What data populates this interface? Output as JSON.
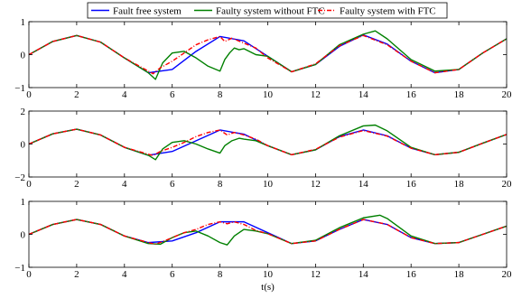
{
  "chart_data": {
    "type": "line",
    "legend": {
      "placement": "top-center",
      "entries": [
        {
          "label": "Fault free system",
          "color": "#0000ff",
          "style": "solid"
        },
        {
          "label": "Faulty system without FTC",
          "color": "#008000",
          "style": "solid"
        },
        {
          "label": "Faulty system with FTC",
          "color": "#ff0000",
          "style": "dash-dot"
        }
      ]
    },
    "xlabel": "t(s)",
    "xlim": [
      0,
      20
    ],
    "xticks": [
      0,
      2,
      4,
      6,
      8,
      10,
      12,
      14,
      16,
      18,
      20
    ],
    "xtick_labels": [
      "0",
      "2",
      "4",
      "6",
      "8",
      "10",
      "12",
      "14",
      "16",
      "18",
      "20"
    ],
    "grid": false,
    "panels": [
      {
        "ylim": [
          -1,
          1
        ],
        "yticks": [
          -1,
          0,
          1
        ],
        "ytick_labels": [
          "−1",
          "0",
          "1"
        ],
        "series": [
          {
            "name": "Fault free system",
            "color": "#0000ff",
            "dash": "",
            "x": [
              0,
              1,
              2,
              3,
              4,
              5,
              6,
              7,
              8,
              9,
              10,
              11,
              12,
              13,
              14,
              15,
              16,
              17,
              18,
              19,
              20
            ],
            "y": [
              0,
              0.4,
              0.58,
              0.38,
              -0.1,
              -0.55,
              -0.45,
              0.1,
              0.55,
              0.42,
              -0.05,
              -0.52,
              -0.3,
              0.25,
              0.6,
              0.32,
              -0.2,
              -0.55,
              -0.45,
              0.05,
              0.48
            ]
          },
          {
            "name": "Faulty system without FTC",
            "color": "#008000",
            "dash": "",
            "x": [
              0,
              1,
              2,
              3,
              4,
              5,
              5.3,
              5.6,
              6,
              6.5,
              7,
              7.5,
              8,
              8.2,
              8.4,
              8.6,
              8.8,
              9,
              9.5,
              10,
              11,
              12,
              13,
              14,
              14.5,
              15,
              16,
              17,
              18,
              19,
              20
            ],
            "y": [
              0,
              0.4,
              0.58,
              0.38,
              -0.1,
              -0.55,
              -0.75,
              -0.25,
              0.05,
              0.1,
              -0.1,
              -0.35,
              -0.5,
              -0.15,
              0.05,
              0.2,
              0.15,
              0.18,
              0,
              -0.05,
              -0.52,
              -0.3,
              0.3,
              0.62,
              0.72,
              0.48,
              -0.15,
              -0.5,
              -0.45,
              0.05,
              0.48
            ]
          },
          {
            "name": "Faulty system with FTC",
            "color": "#ff0000",
            "dash": "5,2,1,2",
            "x": [
              0,
              1,
              2,
              3,
              4,
              5,
              5.2,
              5.5,
              6,
              6.5,
              7,
              7.5,
              8,
              8.2,
              8.5,
              9,
              9.5,
              10,
              11,
              12,
              13,
              14,
              15,
              16,
              17,
              18,
              19,
              20
            ],
            "y": [
              0,
              0.4,
              0.58,
              0.38,
              -0.1,
              -0.5,
              -0.58,
              -0.4,
              -0.2,
              0.05,
              0.3,
              0.45,
              0.55,
              0.4,
              0.5,
              0.35,
              0.2,
              -0.1,
              -0.52,
              -0.28,
              0.27,
              0.58,
              0.3,
              -0.2,
              -0.55,
              -0.45,
              0.05,
              0.48
            ]
          }
        ]
      },
      {
        "ylim": [
          -2,
          2
        ],
        "yticks": [
          -2,
          0,
          2
        ],
        "ytick_labels": [
          "−2",
          "0",
          "2"
        ],
        "series": [
          {
            "name": "Fault free system",
            "color": "#0000ff",
            "dash": "",
            "x": [
              0,
              1,
              2,
              3,
              4,
              5,
              6,
              7,
              8,
              9,
              10,
              11,
              12,
              13,
              14,
              15,
              16,
              17,
              18,
              19,
              20
            ],
            "y": [
              0,
              0.62,
              0.9,
              0.55,
              -0.2,
              -0.68,
              -0.45,
              0.2,
              0.85,
              0.6,
              -0.1,
              -0.65,
              -0.35,
              0.45,
              0.85,
              0.5,
              -0.25,
              -0.65,
              -0.5,
              0.05,
              0.58
            ]
          },
          {
            "name": "Faulty system without FTC",
            "color": "#008000",
            "dash": "",
            "x": [
              0,
              1,
              2,
              3,
              4,
              5,
              5.3,
              5.6,
              6,
              6.5,
              7,
              7.5,
              8,
              8.2,
              8.5,
              8.8,
              9,
              9.5,
              10,
              11,
              12,
              13,
              14,
              14.5,
              15,
              16,
              17,
              18,
              19,
              20
            ],
            "y": [
              0,
              0.62,
              0.9,
              0.55,
              -0.2,
              -0.68,
              -0.95,
              -0.3,
              0.1,
              0.2,
              0,
              -0.3,
              -0.55,
              -0.1,
              0.2,
              0.35,
              0.3,
              0.2,
              -0.1,
              -0.65,
              -0.35,
              0.5,
              1.1,
              1.15,
              0.8,
              -0.2,
              -0.65,
              -0.5,
              0.05,
              0.58
            ]
          },
          {
            "name": "Faulty system with FTC",
            "color": "#ff0000",
            "dash": "5,2,1,2",
            "x": [
              0,
              1,
              2,
              3,
              4,
              5,
              5.2,
              5.5,
              6,
              6.5,
              7,
              7.5,
              8,
              8.3,
              8.6,
              9,
              9.5,
              10,
              11,
              12,
              13,
              14,
              15,
              16,
              17,
              18,
              19,
              20
            ],
            "y": [
              0,
              0.62,
              0.9,
              0.55,
              -0.2,
              -0.62,
              -0.7,
              -0.45,
              -0.2,
              0.1,
              0.45,
              0.7,
              0.85,
              0.55,
              0.7,
              0.55,
              0.3,
              -0.1,
              -0.65,
              -0.32,
              0.42,
              0.82,
              0.48,
              -0.25,
              -0.65,
              -0.5,
              0.05,
              0.58
            ]
          }
        ]
      },
      {
        "ylim": [
          -1,
          1
        ],
        "yticks": [
          -1,
          0,
          1
        ],
        "ytick_labels": [
          "−1",
          "0",
          "1"
        ],
        "series": [
          {
            "name": "Fault free system",
            "color": "#0000ff",
            "dash": "",
            "x": [
              0,
              1,
              2,
              3,
              4,
              5,
              6,
              7,
              8,
              9,
              10,
              11,
              12,
              13,
              14,
              15,
              16,
              17,
              18,
              19,
              20
            ],
            "y": [
              0,
              0.3,
              0.45,
              0.3,
              -0.05,
              -0.25,
              -0.2,
              0.05,
              0.38,
              0.38,
              0.05,
              -0.28,
              -0.2,
              0.15,
              0.45,
              0.3,
              -0.1,
              -0.28,
              -0.25,
              0,
              0.25
            ]
          },
          {
            "name": "Faulty system without FTC",
            "color": "#008000",
            "dash": "",
            "x": [
              0,
              1,
              2,
              3,
              4,
              5,
              5.5,
              6,
              6.5,
              7,
              7.5,
              8,
              8.3,
              8.6,
              9,
              9.5,
              10,
              11,
              12,
              13,
              14,
              14.7,
              15,
              16,
              17,
              18,
              19,
              20
            ],
            "y": [
              0,
              0.3,
              0.45,
              0.3,
              -0.05,
              -0.28,
              -0.3,
              -0.1,
              0.05,
              0.1,
              -0.05,
              -0.25,
              -0.32,
              -0.05,
              0.15,
              0.1,
              0.02,
              -0.28,
              -0.18,
              0.2,
              0.5,
              0.58,
              0.48,
              -0.05,
              -0.28,
              -0.25,
              0,
              0.25
            ]
          },
          {
            "name": "Faulty system with FTC",
            "color": "#ff0000",
            "dash": "5,2,1,2",
            "x": [
              0,
              1,
              2,
              3,
              4,
              5,
              5.3,
              5.6,
              6,
              6.5,
              7,
              7.5,
              8,
              8.3,
              8.6,
              9,
              9.5,
              10,
              11,
              12,
              13,
              14,
              15,
              16,
              17,
              18,
              19,
              20
            ],
            "y": [
              0,
              0.3,
              0.45,
              0.3,
              -0.05,
              -0.25,
              -0.3,
              -0.22,
              -0.1,
              0.05,
              0.15,
              0.3,
              0.38,
              0.32,
              0.38,
              0.3,
              0.12,
              0.02,
              -0.28,
              -0.2,
              0.15,
              0.45,
              0.3,
              -0.1,
              -0.28,
              -0.25,
              0,
              0.25
            ]
          }
        ]
      }
    ]
  }
}
